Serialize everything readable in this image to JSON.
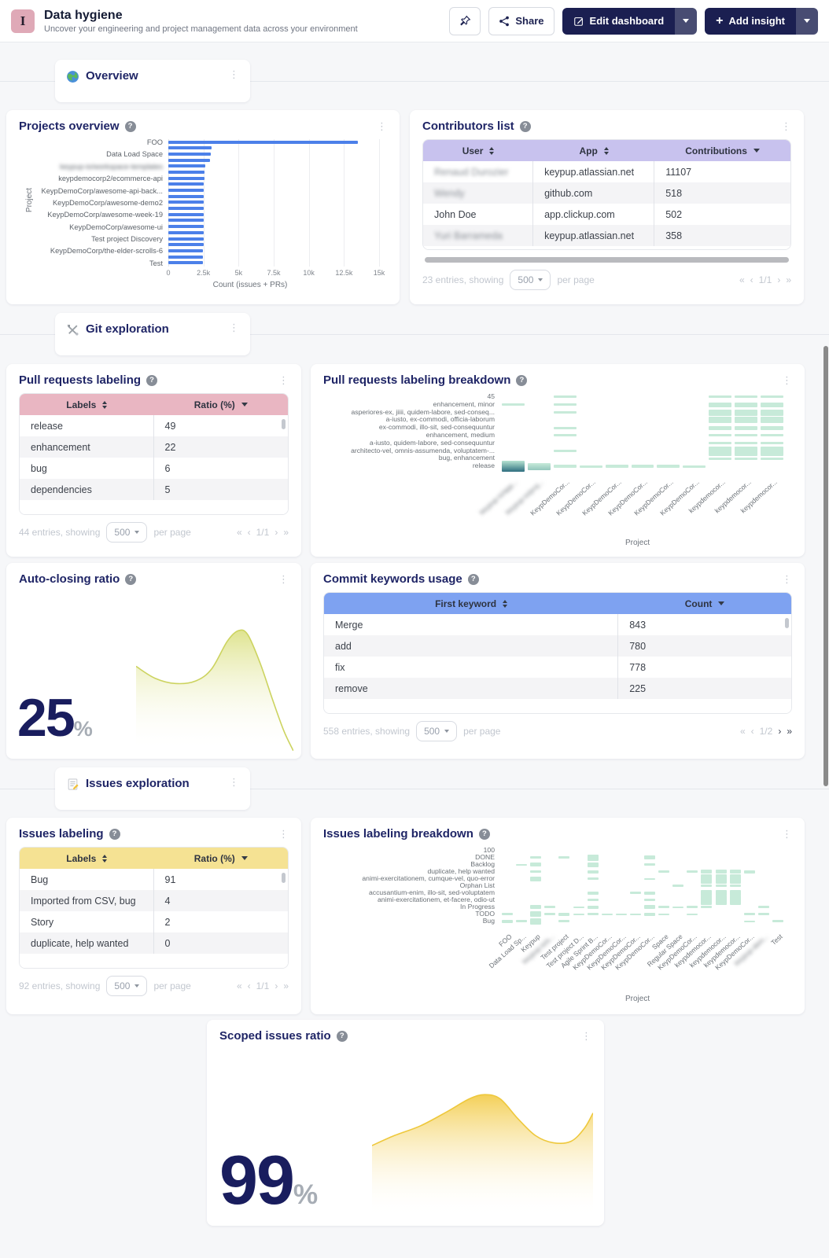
{
  "header": {
    "avatar_glyph": "I",
    "title": "Data hygiene",
    "subtitle": "Uncover your engineering and project management data across your environment",
    "share_label": "Share",
    "edit_label": "Edit dashboard",
    "add_label": "Add insight",
    "brand_navy": "#1b1f51"
  },
  "sections": {
    "overview": {
      "title": "Overview",
      "icon": "globe-icon"
    },
    "git": {
      "title": "Git exploration",
      "icon": "tools-icon"
    },
    "issues": {
      "title": "Issues exploration",
      "icon": "memo-icon"
    }
  },
  "contributors": {
    "title": "Contributors list",
    "columns": [
      {
        "label": "User",
        "sort": "both"
      },
      {
        "label": "App",
        "sort": "both"
      },
      {
        "label": "Contributions",
        "sort": "desc"
      }
    ],
    "rows": [
      {
        "c": [
          "Renaud Durozier",
          "keypup.atlassian.net",
          "11107"
        ],
        "b": [
          1,
          0,
          0
        ]
      },
      {
        "c": [
          "Wendy",
          "github.com",
          "518"
        ],
        "b": [
          1,
          0,
          0
        ]
      },
      {
        "c": [
          "John Doe",
          "app.clickup.com",
          "502"
        ],
        "b": [
          0,
          0,
          0
        ]
      },
      {
        "c": [
          "Yuri Barrameda",
          "keypup.atlassian.net",
          "358"
        ],
        "b": [
          1,
          0,
          0
        ]
      }
    ],
    "footer": {
      "entries": "23 entries, showing",
      "page_size": "500",
      "per_page": "per page",
      "page": "1/1"
    }
  },
  "pr_labeling": {
    "title": "Pull requests labeling",
    "columns": [
      {
        "label": "Labels",
        "sort": "both"
      },
      {
        "label": "Ratio (%)",
        "sort": "desc"
      }
    ],
    "rows": [
      {
        "c": [
          "release",
          "49"
        ],
        "b": [
          0,
          0
        ]
      },
      {
        "c": [
          "enhancement",
          "22"
        ],
        "b": [
          0,
          0
        ]
      },
      {
        "c": [
          "bug",
          "6"
        ],
        "b": [
          0,
          0
        ]
      },
      {
        "c": [
          "dependencies",
          "5"
        ],
        "b": [
          0,
          0
        ]
      }
    ],
    "footer": {
      "entries": "44 entries, showing",
      "page_size": "500",
      "per_page": "per page",
      "page": "1/1"
    }
  },
  "commit_keywords": {
    "title": "Commit keywords usage",
    "columns": [
      {
        "label": "First keyword",
        "sort": "both"
      },
      {
        "label": "Count",
        "sort": "desc"
      }
    ],
    "rows": [
      {
        "c": [
          "Merge",
          "843"
        ],
        "b": [
          0,
          0
        ]
      },
      {
        "c": [
          "add",
          "780"
        ],
        "b": [
          0,
          0
        ]
      },
      {
        "c": [
          "fix",
          "778"
        ],
        "b": [
          0,
          0
        ]
      },
      {
        "c": [
          "remove",
          "225"
        ],
        "b": [
          0,
          0
        ]
      }
    ],
    "footer": {
      "entries": "558 entries, showing",
      "page_size": "500",
      "per_page": "per page",
      "page": "1/2"
    }
  },
  "issues_labeling": {
    "title": "Issues labeling",
    "columns": [
      {
        "label": "Labels",
        "sort": "both"
      },
      {
        "label": "Ratio (%)",
        "sort": "desc"
      }
    ],
    "rows": [
      {
        "c": [
          "Bug",
          "91"
        ],
        "b": [
          0,
          0
        ]
      },
      {
        "c": [
          "Imported from CSV, bug",
          "4"
        ],
        "b": [
          0,
          0
        ]
      },
      {
        "c": [
          "Story",
          "2"
        ],
        "b": [
          0,
          0
        ]
      },
      {
        "c": [
          "duplicate, help wanted",
          "0"
        ],
        "b": [
          0,
          0
        ]
      }
    ],
    "footer": {
      "entries": "92 entries, showing",
      "page_size": "500",
      "per_page": "per page",
      "page": "1/1"
    }
  },
  "chart_data": [
    {
      "id": "projects-overview",
      "type": "bar",
      "title": "Projects overview",
      "xlabel": "Count (issues + PRs)",
      "ylabel": "Project",
      "xmax": 15000,
      "xticks": [
        "0",
        "2.5k",
        "5k",
        "7.5k",
        "10k",
        "12.5k",
        "15k"
      ],
      "bars": [
        {
          "label": "FOO",
          "value": 13500
        },
        {
          "label": "",
          "value": 3100
        },
        {
          "label": "Data Load Space",
          "value": 3000
        },
        {
          "label": "",
          "value": 2950
        },
        {
          "label": "keypup-io/workspace-templates",
          "value": 2620,
          "blurred": true
        },
        {
          "label": "",
          "value": 2570
        },
        {
          "label": "keypdemocorp2/ecommerce-api",
          "value": 2560
        },
        {
          "label": "",
          "value": 2540
        },
        {
          "label": "KeypDemoCorp/awesome-api-back...",
          "value": 2530
        },
        {
          "label": "",
          "value": 2520
        },
        {
          "label": "KeypDemoCorp/awesome-demo2",
          "value": 2515
        },
        {
          "label": "",
          "value": 2510
        },
        {
          "label": "KeypDemoCorp/awesome-week-19",
          "value": 2505
        },
        {
          "label": "",
          "value": 2500
        },
        {
          "label": "KeypDemoCorp/awesome-ui",
          "value": 2500
        },
        {
          "label": "",
          "value": 2498
        },
        {
          "label": "Test project Discovery",
          "value": 2495
        },
        {
          "label": "",
          "value": 2492
        },
        {
          "label": "KeypDemoCorp/the-elder-scrolls-6",
          "value": 2490
        },
        {
          "label": "",
          "value": 2488
        },
        {
          "label": "Test",
          "value": 2485
        }
      ]
    },
    {
      "id": "pr-breakdown",
      "type": "heatmap",
      "title": "Pull requests labeling breakdown",
      "xlabel": "Project",
      "rows": [
        "45",
        "enhancement, minor",
        "asperiores-ex, jiiii, quidem-labore, sed-conseq...",
        "a-iusto, ex-commodi, officia-laborum",
        "ex-commodi, illo-sit, sed-consequuntur",
        "enhancement, medium",
        "a-iusto, quidem-labore, sed-consequuntur",
        "architecto-vel, omnis-assumenda, voluptatem-...",
        "bug, enhancement",
        "release"
      ],
      "cols": [
        "keypup-io/app...",
        "keypup-io/proj...",
        "KeypDemoCor...",
        "KeypDemoCor...",
        "KeypDemoCor...",
        "KeypDemoCor...",
        "KeypDemoCor...",
        "KeypDemoCor...",
        "keypdemocor...",
        "keypdemocor...",
        "keypdemocor..."
      ],
      "col_blur": [
        0,
        1
      ],
      "cells": [
        [
          0,
          2,
          3
        ],
        [
          0,
          8,
          3
        ],
        [
          0,
          9,
          3
        ],
        [
          0,
          10,
          3
        ],
        [
          1,
          0,
          3
        ],
        [
          1,
          2,
          3
        ],
        [
          1,
          8,
          6
        ],
        [
          1,
          9,
          6
        ],
        [
          1,
          10,
          6
        ],
        [
          2,
          2,
          3
        ],
        [
          2,
          8,
          8
        ],
        [
          2,
          9,
          8
        ],
        [
          2,
          10,
          8
        ],
        [
          3,
          8,
          8
        ],
        [
          3,
          9,
          8
        ],
        [
          3,
          10,
          8
        ],
        [
          4,
          2,
          3
        ],
        [
          4,
          8,
          5
        ],
        [
          4,
          9,
          5
        ],
        [
          4,
          10,
          5
        ],
        [
          5,
          2,
          3
        ],
        [
          5,
          8,
          3
        ],
        [
          5,
          9,
          3
        ],
        [
          5,
          10,
          3
        ],
        [
          6,
          8,
          3
        ],
        [
          6,
          9,
          3
        ],
        [
          6,
          10,
          3
        ],
        [
          7,
          2,
          3
        ],
        [
          7,
          8,
          12
        ],
        [
          7,
          9,
          12
        ],
        [
          7,
          10,
          12
        ],
        [
          8,
          8,
          3
        ],
        [
          8,
          9,
          3
        ],
        [
          8,
          10,
          3
        ],
        [
          9,
          0,
          14,
          "grad"
        ],
        [
          9,
          1,
          9,
          "grad2"
        ],
        [
          9,
          2,
          4
        ],
        [
          9,
          3,
          3
        ],
        [
          9,
          4,
          4
        ],
        [
          9,
          5,
          4
        ],
        [
          9,
          6,
          4
        ],
        [
          9,
          7,
          3
        ]
      ]
    },
    {
      "id": "auto-closing",
      "type": "area",
      "title": "Auto-closing ratio",
      "value": "25",
      "unit": "%",
      "fill": "#dde289",
      "stroke": "#ccd35f",
      "points": [
        [
          0,
          36
        ],
        [
          12,
          45
        ],
        [
          25,
          49
        ],
        [
          38,
          47
        ],
        [
          48,
          38
        ],
        [
          58,
          17
        ],
        [
          65,
          9
        ],
        [
          71,
          12
        ],
        [
          79,
          34
        ],
        [
          87,
          62
        ],
        [
          94,
          85
        ],
        [
          100,
          100
        ]
      ]
    },
    {
      "id": "issues-breakdown",
      "type": "heatmap",
      "title": "Issues labeling breakdown",
      "xlabel": "Project",
      "rows": [
        "100",
        "DONE",
        "Backlog",
        "duplicate, help wanted",
        "animi-exercitationem, cumque-vel, quo-error",
        "Orphan List",
        "accusantium-enim, illo-sit, sed-voluptatem",
        "animi-exercitationem, et-facere, odio-ut",
        "In Progress",
        "TODO",
        "Bug"
      ],
      "cols": [
        "FOO",
        "Data Load Sp...",
        "Keypup",
        "keypup-io/s...",
        "Test project",
        "Test project D...",
        "Agile Sprint B...",
        "KeypDemoCor...",
        "KeypDemoCor...",
        "KeypDemoCor...",
        "KeypDemoCor...",
        "Space",
        "Regular Space",
        "KeypDemoCor...",
        "keypdemocor...",
        "keypdemocor...",
        "keypdemocor...",
        "KeypDemoCor...",
        "keypup-dem...",
        "Test"
      ],
      "col_blur": [
        3,
        18
      ],
      "cells": [
        [
          10,
          0,
          4
        ],
        [
          9,
          0,
          3
        ],
        [
          2,
          1,
          2
        ],
        [
          10,
          1,
          3
        ],
        [
          1,
          2,
          3
        ],
        [
          2,
          2,
          5
        ],
        [
          3,
          2,
          3
        ],
        [
          4,
          2,
          6
        ],
        [
          8,
          2,
          5
        ],
        [
          9,
          2,
          7
        ],
        [
          10,
          2,
          8
        ],
        [
          8,
          3,
          3
        ],
        [
          9,
          3,
          3
        ],
        [
          1,
          4,
          3
        ],
        [
          9,
          4,
          4
        ],
        [
          10,
          4,
          3
        ],
        [
          8,
          5,
          2
        ],
        [
          9,
          5,
          2
        ],
        [
          1,
          6,
          8
        ],
        [
          2,
          6,
          6
        ],
        [
          3,
          6,
          4
        ],
        [
          4,
          6,
          3
        ],
        [
          6,
          6,
          4
        ],
        [
          7,
          6,
          3
        ],
        [
          8,
          6,
          4
        ],
        [
          9,
          6,
          3
        ],
        [
          9,
          7,
          2
        ],
        [
          9,
          8,
          2
        ],
        [
          6,
          9,
          3
        ],
        [
          9,
          9,
          2
        ],
        [
          1,
          10,
          5
        ],
        [
          2,
          10,
          3
        ],
        [
          4,
          10,
          2
        ],
        [
          6,
          10,
          4
        ],
        [
          7,
          10,
          3
        ],
        [
          8,
          10,
          5
        ],
        [
          9,
          10,
          4
        ],
        [
          3,
          11,
          3
        ],
        [
          8,
          11,
          3
        ],
        [
          9,
          11,
          2
        ],
        [
          5,
          12,
          3
        ],
        [
          8,
          12,
          2
        ],
        [
          3,
          13,
          3
        ],
        [
          8,
          13,
          3
        ],
        [
          9,
          13,
          2
        ],
        [
          3,
          14,
          5
        ],
        [
          4,
          14,
          12
        ],
        [
          5,
          14,
          3
        ],
        [
          6,
          14,
          8
        ],
        [
          7,
          14,
          12
        ],
        [
          8,
          14,
          3
        ],
        [
          3,
          15,
          5
        ],
        [
          4,
          15,
          12
        ],
        [
          5,
          15,
          3
        ],
        [
          6,
          15,
          8
        ],
        [
          7,
          15,
          12
        ],
        [
          3,
          16,
          5
        ],
        [
          4,
          16,
          12
        ],
        [
          5,
          16,
          3
        ],
        [
          6,
          16,
          8
        ],
        [
          7,
          16,
          12
        ],
        [
          3,
          17,
          4
        ],
        [
          9,
          17,
          3
        ],
        [
          10,
          17,
          2
        ],
        [
          8,
          18,
          3
        ],
        [
          9,
          18,
          3
        ],
        [
          10,
          19,
          3
        ]
      ]
    },
    {
      "id": "scoped-issues",
      "type": "area",
      "title": "Scoped issues ratio",
      "value": "99",
      "unit": "%",
      "fill": "#f3cd4f",
      "stroke": "#eec83c",
      "points": [
        [
          0,
          50
        ],
        [
          10,
          43
        ],
        [
          22,
          36
        ],
        [
          34,
          26
        ],
        [
          44,
          17
        ],
        [
          51,
          14
        ],
        [
          58,
          17
        ],
        [
          66,
          31
        ],
        [
          74,
          43
        ],
        [
          82,
          48
        ],
        [
          90,
          47
        ],
        [
          96,
          38
        ],
        [
          100,
          27
        ]
      ]
    }
  ]
}
